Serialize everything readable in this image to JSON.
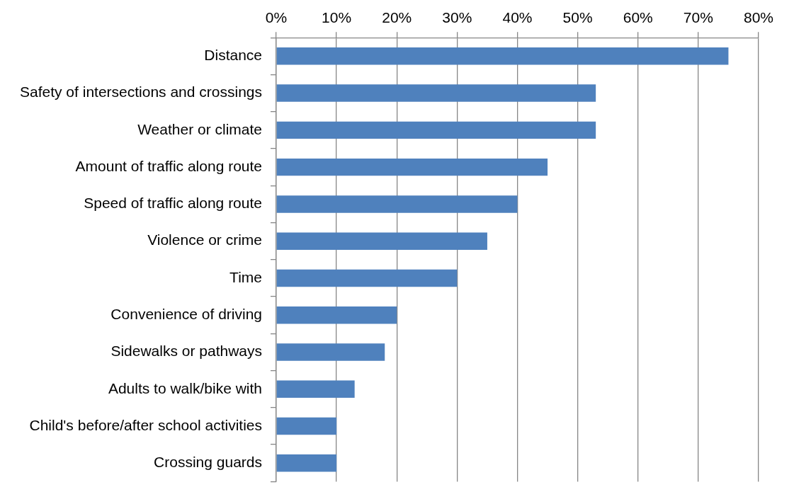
{
  "chart_data": {
    "type": "bar",
    "orientation": "horizontal",
    "categories": [
      "Distance",
      "Safety of intersections and crossings",
      "Weather or climate",
      "Amount of traffic along route",
      "Speed of traffic along route",
      "Violence or crime",
      "Time",
      "Convenience of driving",
      "Sidewalks or pathways",
      "Adults to walk/bike with",
      "Child's before/after school activities",
      "Crossing guards"
    ],
    "values": [
      75,
      53,
      53,
      45,
      40,
      35,
      30,
      20,
      18,
      13,
      10,
      10
    ],
    "color": "#4f81bd",
    "xlim": [
      0,
      80
    ],
    "xticks": [
      {
        "value": 0,
        "label": "0%"
      },
      {
        "value": 10,
        "label": "10%"
      },
      {
        "value": 20,
        "label": "20%"
      },
      {
        "value": 30,
        "label": "30%"
      },
      {
        "value": 40,
        "label": "40%"
      },
      {
        "value": 50,
        "label": "50%"
      },
      {
        "value": 60,
        "label": "60%"
      },
      {
        "value": 70,
        "label": "70%"
      },
      {
        "value": 80,
        "label": "80%"
      }
    ],
    "grid": "x",
    "legend": false
  }
}
